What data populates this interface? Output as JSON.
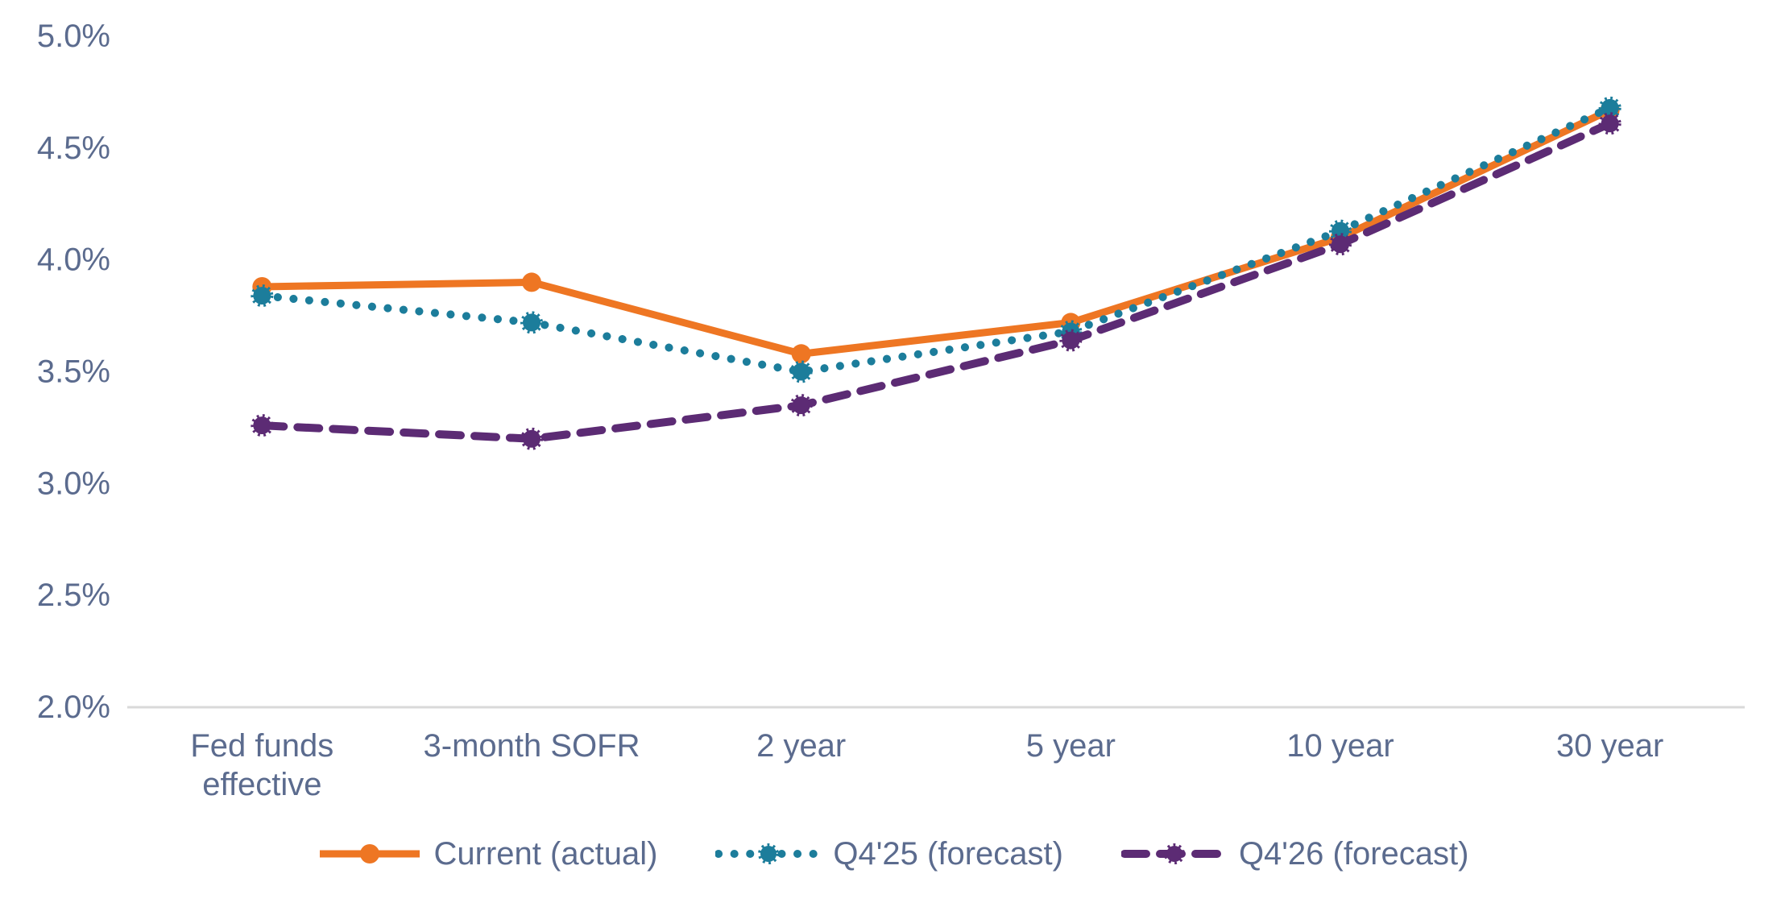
{
  "chart_data": {
    "type": "line",
    "title": "",
    "categories": [
      "Fed funds effective",
      "3-month SOFR",
      "2 year",
      "5 year",
      "10 year",
      "30 year"
    ],
    "category_label_lines": [
      [
        "Fed funds",
        "effective"
      ],
      [
        "3-month SOFR"
      ],
      [
        "2 year"
      ],
      [
        "5 year"
      ],
      [
        "10 year"
      ],
      [
        "30 year"
      ]
    ],
    "series": [
      {
        "name": "Current (actual)",
        "line_style": "solid",
        "color": "#EE7623",
        "values": [
          3.88,
          3.9,
          3.58,
          3.72,
          4.1,
          4.67
        ]
      },
      {
        "name": "Q4'25 (forecast)",
        "line_style": "dotted",
        "color": "#1C7D9B",
        "values": [
          3.84,
          3.72,
          3.5,
          3.68,
          4.13,
          4.68
        ]
      },
      {
        "name": "Q4'26 (forecast)",
        "line_style": "dashed",
        "color": "#5C2B74",
        "values": [
          3.26,
          3.2,
          3.35,
          3.64,
          4.07,
          4.61
        ]
      }
    ],
    "ylim": [
      2.0,
      5.0
    ],
    "ytick_step": 0.5,
    "yticks": [
      {
        "value": 5.0,
        "label": "5.0%"
      },
      {
        "value": 4.5,
        "label": "4.5%"
      },
      {
        "value": 4.0,
        "label": "4.0%"
      },
      {
        "value": 3.5,
        "label": "3.5%"
      },
      {
        "value": 3.0,
        "label": "3.0%"
      },
      {
        "value": 2.5,
        "label": "2.5%"
      },
      {
        "value": 2.0,
        "label": "2.0%"
      }
    ],
    "grid": false,
    "legend_position": "bottom",
    "axis_text_color": "#5B6B8E",
    "axis_line_color": "#D9D9D9",
    "background": "#FFFFFF"
  }
}
